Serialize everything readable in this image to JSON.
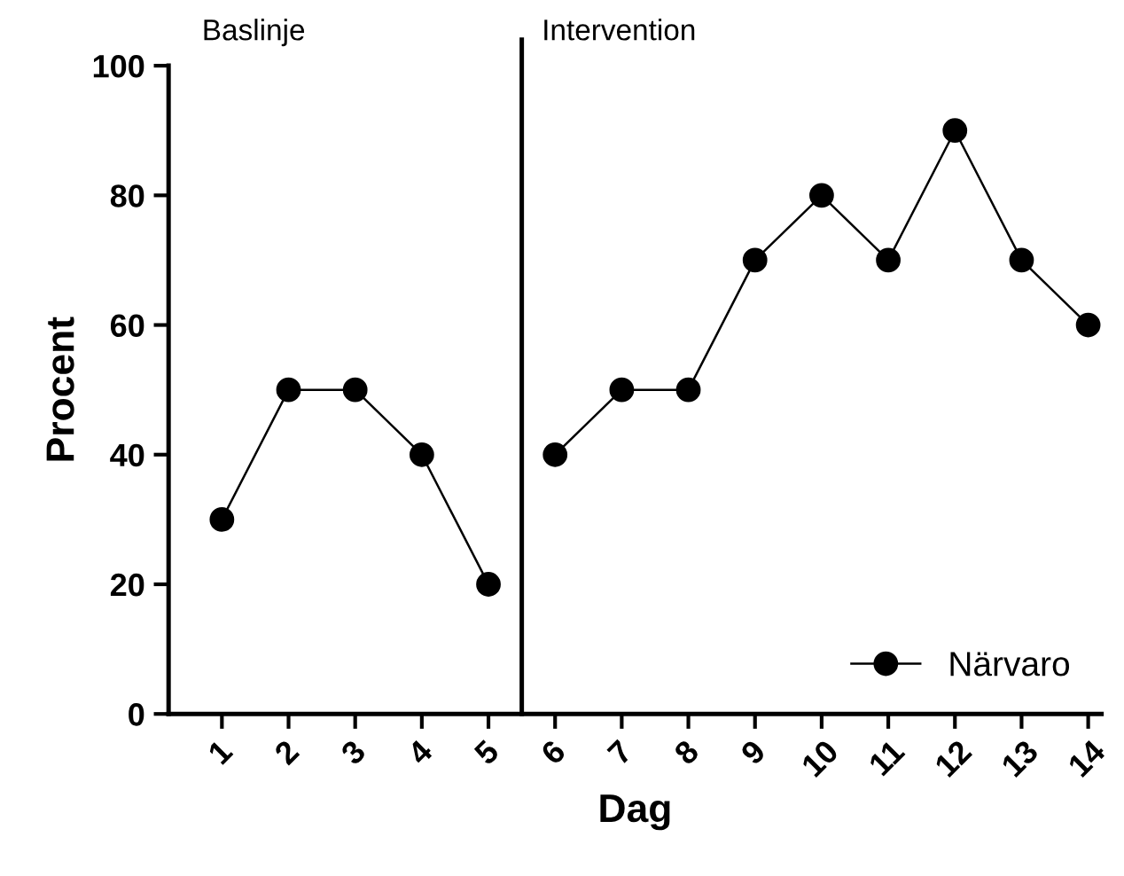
{
  "chart_data": {
    "type": "line",
    "xlabel": "Dag",
    "ylabel": "Procent",
    "annotations": [
      "Baslinje",
      "Intervention"
    ],
    "series": [
      {
        "name": "Närvaro",
        "color": "#000000",
        "x": [
          1,
          2,
          3,
          4,
          5
        ],
        "values": [
          30,
          50,
          50,
          40,
          20
        ]
      },
      {
        "color": "#000000",
        "x": [
          6,
          7,
          8,
          9,
          10,
          11,
          12,
          13,
          14
        ],
        "values": [
          40,
          50,
          50,
          70,
          80,
          70,
          90,
          70,
          60
        ]
      }
    ],
    "xlim": [
      0.2,
      14.2
    ],
    "xticks": [
      1,
      2,
      3,
      4,
      5,
      6,
      7,
      8,
      9,
      10,
      11,
      12,
      13,
      14
    ],
    "ylim": [
      0,
      100
    ],
    "yticks": [
      0,
      20,
      40,
      60,
      80,
      100
    ],
    "ref_lines": [
      {
        "axis": "x",
        "value": 5.5,
        "color": "#000000"
      }
    ],
    "marker": "circle",
    "line_style": "solid",
    "grid": false,
    "legend": "bottom right"
  }
}
